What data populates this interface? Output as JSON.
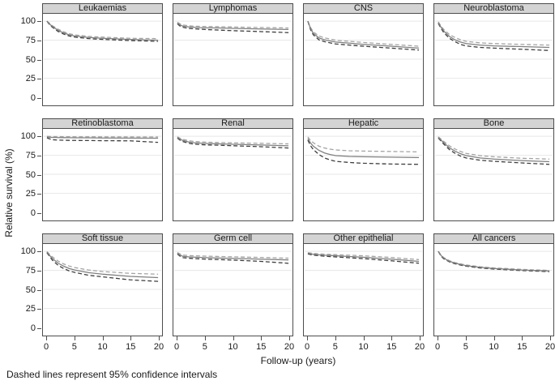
{
  "figure": {
    "footnote": "Dashed lines represent 95% confidence intervals"
  },
  "chart_data": {
    "type": "line",
    "title": "",
    "xlabel": "Follow-up (years)",
    "ylabel": "Relative survival (%)",
    "layout": {
      "grid": "4 columns x 3 rows of small multiples",
      "xlim": [
        0,
        20
      ],
      "ylim": [
        0,
        100
      ],
      "x_ticks": [
        0,
        5,
        10,
        15,
        20
      ],
      "y_ticks": [
        100,
        75,
        50,
        25,
        0
      ],
      "gridlines": [
        25,
        50,
        75,
        100
      ],
      "legend": "none (dashed lines are 95% confidence intervals)"
    },
    "colors": {
      "estimate_line": "#7f7f7f",
      "upper_ci_line": "#a3a3a3",
      "lower_ci_line": "#3d3d3d",
      "panel_header_bg": "#d4d4d4",
      "panel_border": "#4d4d4d",
      "gridline": "#e7e7e7"
    },
    "x": [
      0,
      0.5,
      1,
      2,
      3,
      4,
      5,
      7.5,
      10,
      15,
      20
    ],
    "panels": [
      {
        "title": "Leukaemias",
        "series": {
          "estimate": [
            100,
            96,
            93,
            88,
            84.5,
            82,
            80.5,
            78.5,
            77.5,
            76,
            75
          ],
          "upper_95ci": [
            100,
            97,
            94,
            89.5,
            86,
            83.5,
            82,
            80,
            79,
            77.5,
            77
          ],
          "lower_95ci": [
            100,
            95,
            92,
            86.5,
            83,
            80.5,
            79,
            77,
            76,
            74.5,
            73.5
          ]
        }
      },
      {
        "title": "Lymphomas",
        "series": {
          "estimate": [
            97.5,
            95,
            93.5,
            92.5,
            92,
            91.5,
            91.3,
            91,
            90.5,
            89.8,
            89
          ],
          "upper_95ci": [
            98.5,
            96.5,
            95,
            94,
            93.5,
            93.2,
            93,
            92.7,
            92.3,
            91.7,
            91
          ],
          "lower_95ci": [
            96.5,
            93.5,
            92,
            90.5,
            90,
            89.5,
            89,
            88.3,
            87.5,
            86.3,
            85
          ]
        }
      },
      {
        "title": "CNS",
        "series": {
          "estimate": [
            100,
            90,
            84,
            78,
            75.5,
            74,
            72.5,
            71,
            69.5,
            67,
            64.5
          ],
          "upper_95ci": [
            100,
            91.5,
            86,
            80.5,
            78,
            76.5,
            75,
            73.5,
            72,
            69.5,
            67
          ],
          "lower_95ci": [
            100,
            88.5,
            82,
            75.5,
            73,
            71.5,
            70,
            68.5,
            67,
            64.5,
            62
          ]
        }
      },
      {
        "title": "Neuroblastoma",
        "series": {
          "estimate": [
            98,
            92,
            87,
            80,
            75.5,
            72.5,
            70.5,
            68.5,
            67.5,
            66.5,
            65.5
          ],
          "upper_95ci": [
            99,
            93.5,
            89,
            82.5,
            78.5,
            75.5,
            73.5,
            71.5,
            70.5,
            69.5,
            68.5
          ],
          "lower_95ci": [
            97,
            90.5,
            85,
            77.5,
            73,
            69.5,
            67.5,
            65.5,
            64.5,
            63,
            61.5
          ]
        }
      },
      {
        "title": "Retinoblastoma",
        "series": {
          "estimate": [
            99,
            98.7,
            98.5,
            98.3,
            98.2,
            98.1,
            98,
            98,
            97.8,
            97.6,
            97.5
          ],
          "upper_95ci": [
            100,
            99.8,
            99.7,
            99.6,
            99.5,
            99.5,
            99.4,
            99.4,
            99.3,
            99.2,
            99.1
          ],
          "lower_95ci": [
            98,
            96.5,
            95.5,
            95,
            94.8,
            94.6,
            94.5,
            94.4,
            94.2,
            94,
            92
          ]
        }
      },
      {
        "title": "Renal",
        "series": {
          "estimate": [
            98.5,
            96,
            94.5,
            92.5,
            91.5,
            91,
            90.5,
            90,
            89.5,
            88.5,
            87.5
          ],
          "upper_95ci": [
            99.3,
            97.3,
            96,
            94.2,
            93.3,
            92.8,
            92.3,
            91.8,
            91.4,
            90.7,
            90
          ],
          "lower_95ci": [
            97.7,
            94.7,
            93,
            90.8,
            89.7,
            89.2,
            88.7,
            88.2,
            87.6,
            86.3,
            84.5
          ]
        }
      },
      {
        "title": "Hepatic",
        "series": {
          "estimate": [
            97,
            91,
            87,
            81.5,
            78,
            76,
            74.5,
            73.5,
            73,
            72.5,
            72
          ],
          "upper_95ci": [
            99,
            94.5,
            91.5,
            87,
            84.5,
            83,
            82,
            81,
            80.5,
            80,
            79.5
          ],
          "lower_95ci": [
            95,
            87.5,
            82.5,
            76,
            71.5,
            69,
            67,
            65.5,
            64.5,
            63.5,
            63
          ]
        }
      },
      {
        "title": "Bone",
        "series": {
          "estimate": [
            98.5,
            95,
            91.5,
            85,
            80.5,
            77,
            74.5,
            71.5,
            70,
            68,
            66.5
          ],
          "upper_95ci": [
            99.3,
            96.3,
            93.3,
            87.5,
            83.3,
            80,
            77.5,
            74.5,
            73,
            71,
            70
          ],
          "lower_95ci": [
            97.7,
            93.7,
            89.7,
            82.5,
            77.7,
            74,
            71.5,
            68.5,
            67,
            65,
            63
          ]
        }
      },
      {
        "title": "Soft tissue",
        "series": {
          "estimate": [
            99,
            94.5,
            90.5,
            84.5,
            80.5,
            77.5,
            75.5,
            72,
            70,
            67,
            65.5
          ],
          "upper_95ci": [
            99.7,
            96,
            92.7,
            87.3,
            83.5,
            80.7,
            78.7,
            75.5,
            73.5,
            71,
            70
          ],
          "lower_95ci": [
            98.3,
            93,
            88.3,
            81.7,
            77.5,
            74.3,
            72.3,
            68.5,
            66.5,
            62.5,
            60.5
          ]
        }
      },
      {
        "title": "Germ cell",
        "series": {
          "estimate": [
            97.5,
            95,
            93.5,
            92.8,
            92.4,
            92.1,
            91.8,
            91.3,
            90.8,
            89.8,
            88.7
          ],
          "upper_95ci": [
            98.5,
            96.5,
            95.2,
            94.5,
            94.2,
            94,
            93.8,
            93.3,
            92.8,
            92,
            91
          ],
          "lower_95ci": [
            96.5,
            93.5,
            91.8,
            91,
            90.5,
            90.2,
            89.8,
            89.2,
            88.5,
            86.8,
            84.3
          ]
        }
      },
      {
        "title": "Other epithelial",
        "series": {
          "estimate": [
            97.5,
            96.8,
            96.2,
            95.5,
            95,
            94.6,
            94.2,
            93.3,
            92.3,
            89.8,
            86.8
          ],
          "upper_95ci": [
            98.3,
            97.8,
            97.3,
            96.7,
            96.3,
            96,
            95.7,
            95,
            94.2,
            92,
            89.2
          ],
          "lower_95ci": [
            96.7,
            95.8,
            95.1,
            94.3,
            93.7,
            93.2,
            92.7,
            91.6,
            90.4,
            87.6,
            84.4
          ]
        }
      },
      {
        "title": "All cancers",
        "series": {
          "estimate": [
            100,
            94.5,
            91,
            87,
            84.5,
            82.8,
            81.3,
            79,
            77.5,
            75.5,
            74.2
          ],
          "upper_95ci": [
            100,
            95.3,
            91.8,
            87.8,
            85.3,
            83.6,
            82.1,
            79.8,
            78.3,
            76.3,
            75
          ],
          "lower_95ci": [
            100,
            93.7,
            90.2,
            86.2,
            83.7,
            82,
            80.5,
            78.2,
            76.7,
            74.7,
            73.4
          ]
        }
      }
    ]
  }
}
